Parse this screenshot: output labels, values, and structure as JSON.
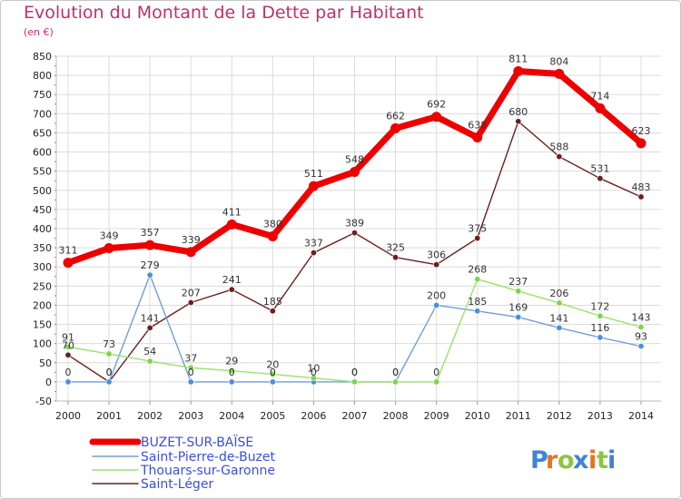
{
  "chart_data": {
    "type": "line",
    "title": "Evolution du Montant de la Dette par Habitant",
    "subtitle": "(en €)",
    "x": [
      "2000",
      "2001",
      "2002",
      "2003",
      "2004",
      "2005",
      "2006",
      "2007",
      "2008",
      "2009",
      "2010",
      "2011",
      "2012",
      "2013",
      "2014"
    ],
    "ylim": [
      -50,
      850
    ],
    "yticks": [
      -50,
      0,
      50,
      100,
      150,
      200,
      250,
      300,
      350,
      400,
      450,
      500,
      550,
      600,
      650,
      700,
      750,
      800,
      850
    ],
    "grid": true,
    "legend_position": "bottom-left",
    "series": [
      {
        "name": "BUZET-SUR-BAÏSE",
        "color": "#ee0000",
        "values": [
          311,
          349,
          357,
          339,
          411,
          380,
          511,
          548,
          662,
          692,
          638,
          811,
          804,
          714,
          623
        ]
      },
      {
        "name": "Saint-Pierre-de-Buzet",
        "color": "#6f9fd8",
        "values": [
          0,
          0,
          279,
          0,
          0,
          0,
          0,
          0,
          0,
          200,
          185,
          169,
          141,
          116,
          93
        ]
      },
      {
        "name": "Thouars-sur-Garonne",
        "color": "#99e26b",
        "values": [
          91,
          73,
          54,
          37,
          29,
          20,
          10,
          0,
          0,
          0,
          268,
          237,
          206,
          172,
          143
        ]
      },
      {
        "name": "Saint-Léger",
        "color": "#6b1f1f",
        "values": [
          70,
          0,
          141,
          207,
          241,
          185,
          337,
          389,
          325,
          306,
          375,
          680,
          588,
          531,
          483
        ]
      }
    ]
  },
  "logo": {
    "text": "Proxiti"
  }
}
